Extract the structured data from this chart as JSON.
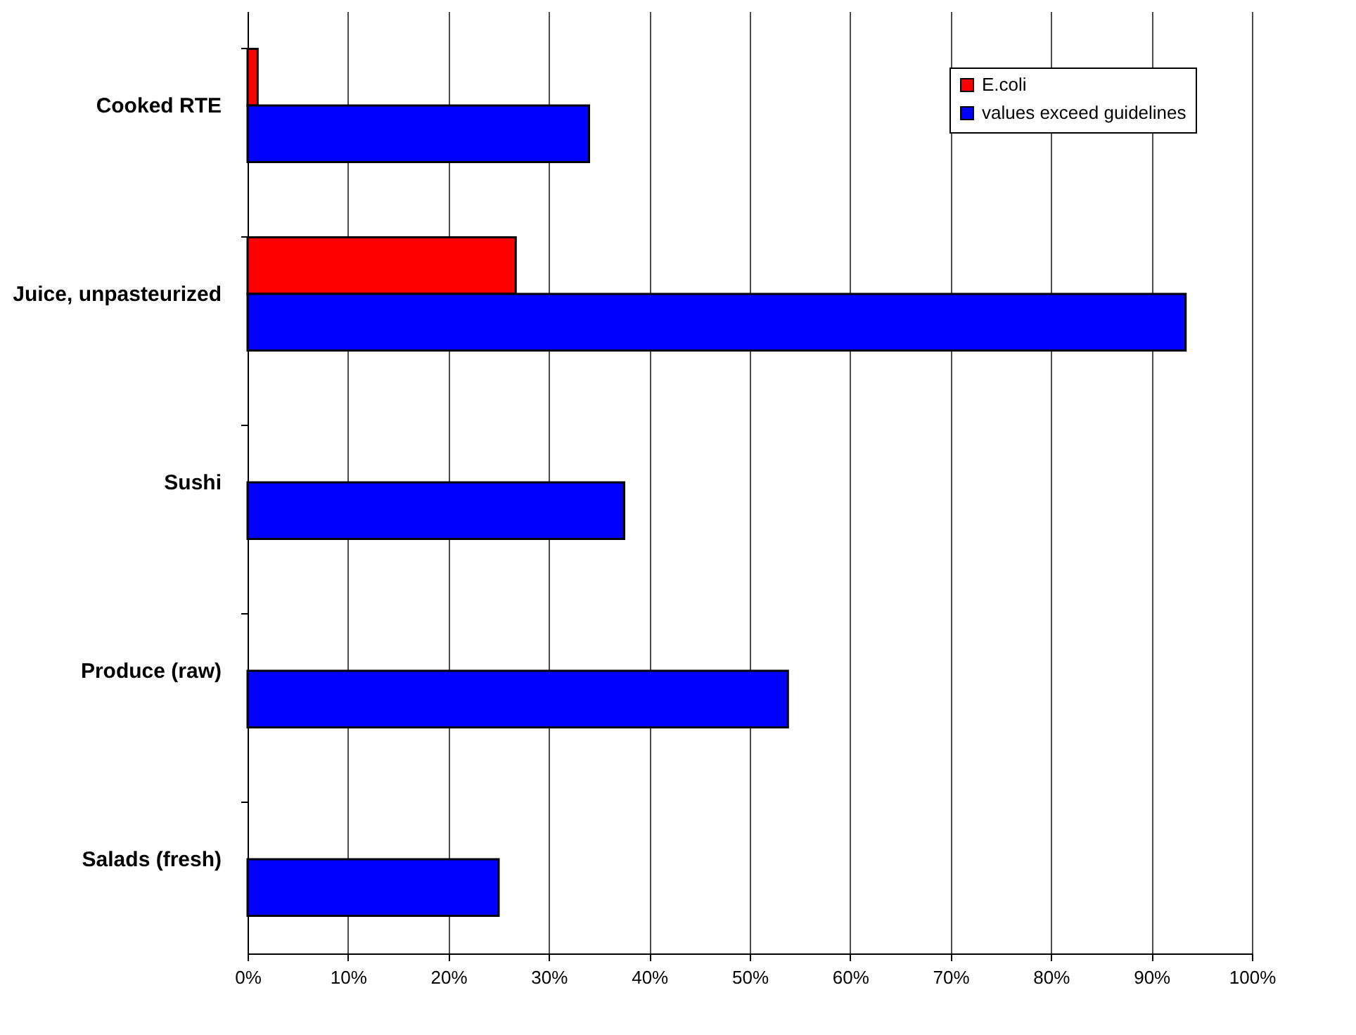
{
  "chart_data": {
    "type": "bar",
    "orientation": "horizontal",
    "categories": [
      "Cooked RTE",
      "Juice, unpasteurized",
      "Sushi",
      "Produce (raw)",
      "Salads (fresh)"
    ],
    "series": [
      {
        "name": "E.coli",
        "color": "#ff0000",
        "values": [
          1,
          26.7,
          null,
          null,
          null
        ]
      },
      {
        "name": "values exceed guidelines",
        "color": "#0000ff",
        "values": [
          34,
          93.4,
          37.5,
          53.8,
          25
        ]
      }
    ],
    "xlim": [
      0,
      100
    ],
    "xticks": [
      {
        "value": 0,
        "label": "0%"
      },
      {
        "value": 10,
        "label": "10%"
      },
      {
        "value": 20,
        "label": "20%"
      },
      {
        "value": 30,
        "label": "30%"
      },
      {
        "value": 40,
        "label": "40%"
      },
      {
        "value": 50,
        "label": "50%"
      },
      {
        "value": 60,
        "label": "60%"
      },
      {
        "value": 70,
        "label": "70%"
      },
      {
        "value": 80,
        "label": "80%"
      },
      {
        "value": 90,
        "label": "90%"
      },
      {
        "value": 100,
        "label": "100%"
      }
    ],
    "grid": "x",
    "legend": "top right"
  }
}
